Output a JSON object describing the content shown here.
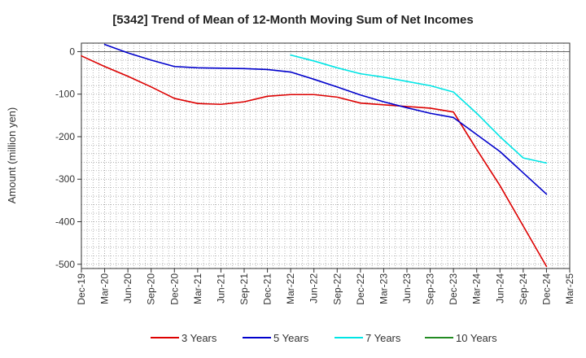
{
  "chart_data": {
    "type": "line",
    "title": "[5342]  Trend of Mean of 12-Month Moving Sum of Net Incomes",
    "ylabel": "Amount (million yen)",
    "xlabel": "",
    "ylim": [
      -510,
      20
    ],
    "yticks": [
      0,
      -100,
      -200,
      -300,
      -400,
      -500
    ],
    "ytick_labels": [
      "0",
      "-100",
      "-200",
      "-300",
      "-400",
      "-500"
    ],
    "x_categories": [
      "Dec-19",
      "Mar-20",
      "Jun-20",
      "Sep-20",
      "Dec-20",
      "Mar-21",
      "Jun-21",
      "Sep-21",
      "Dec-21",
      "Mar-22",
      "Jun-22",
      "Sep-22",
      "Dec-22",
      "Mar-23",
      "Jun-23",
      "Sep-23",
      "Dec-23",
      "Mar-24",
      "Jun-24",
      "Sep-24",
      "Dec-24",
      "Mar-25"
    ],
    "grid": true,
    "legend_position": "bottom",
    "series": [
      {
        "name": "3 Years",
        "color": "#dd0000",
        "values": [
          -10,
          -35,
          -58,
          -83,
          -110,
          -122,
          -124,
          -118,
          -105,
          -101,
          -101,
          -107,
          -121,
          -125,
          -129,
          -133,
          -142,
          -230,
          -315,
          -410,
          -505,
          null
        ]
      },
      {
        "name": "5 Years",
        "color": "#0000cc",
        "values": [
          null,
          17,
          -3,
          -20,
          -35,
          -38,
          -39,
          -40,
          -42,
          -48,
          -65,
          -83,
          -102,
          -118,
          -132,
          -145,
          -155,
          -195,
          -235,
          -285,
          -335,
          null
        ]
      },
      {
        "name": "7 Years",
        "color": "#00e5e5",
        "values": [
          null,
          null,
          null,
          null,
          null,
          null,
          null,
          null,
          null,
          -8,
          -22,
          -38,
          -52,
          -60,
          -70,
          -80,
          -95,
          -145,
          -200,
          -250,
          -262,
          null
        ]
      },
      {
        "name": "10 Years",
        "color": "#228b22",
        "values": [
          null,
          null,
          null,
          null,
          null,
          null,
          null,
          null,
          null,
          null,
          null,
          null,
          null,
          null,
          null,
          null,
          null,
          null,
          null,
          null,
          null,
          null
        ]
      }
    ]
  }
}
